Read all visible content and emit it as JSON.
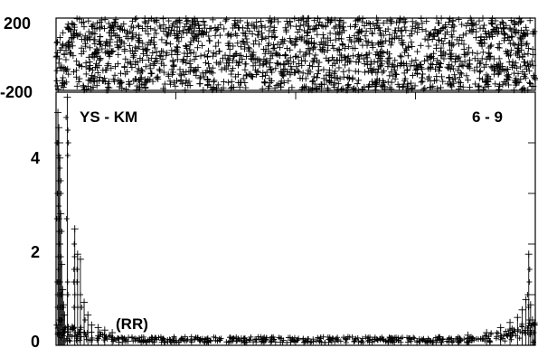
{
  "chart_data": [
    {
      "type": "scatter",
      "panel": "phase",
      "y_ticks": [
        "200",
        "-200"
      ],
      "ylim": [
        -200,
        200
      ],
      "xlim": [
        0,
        512
      ],
      "marker": "+",
      "density": "dense cloud filling the full range",
      "color": "#000000"
    },
    {
      "type": "line",
      "panel": "magnitude",
      "title_left": "YS - KM",
      "title_right": "6 - 9",
      "overlay_text": "(RR)",
      "y_ticks": [
        "4",
        "2",
        "0"
      ],
      "ylim": [
        0,
        5
      ],
      "xlim": [
        0,
        512
      ],
      "marker": "+",
      "color": "#000000",
      "peaks": [
        {
          "x": 2,
          "y": 4.6
        },
        {
          "x": 3,
          "y": 4.3
        },
        {
          "x": 4,
          "y": 3.7
        },
        {
          "x": 5,
          "y": 2.6
        },
        {
          "x": 6,
          "y": 1.6
        },
        {
          "x": 7,
          "y": 1.1
        },
        {
          "x": 8,
          "y": 0.8
        },
        {
          "x": 9,
          "y": 0.6
        },
        {
          "x": 12,
          "y": 4.9
        },
        {
          "x": 20,
          "y": 2.3
        },
        {
          "x": 23,
          "y": 1.8
        },
        {
          "x": 26,
          "y": 1.7
        },
        {
          "x": 30,
          "y": 0.85
        },
        {
          "x": 34,
          "y": 0.6
        },
        {
          "x": 38,
          "y": 0.4
        },
        {
          "x": 45,
          "y": 0.35
        },
        {
          "x": 52,
          "y": 0.3
        },
        {
          "x": 60,
          "y": 0.25
        },
        {
          "x": 440,
          "y": 0.2
        },
        {
          "x": 460,
          "y": 0.25
        },
        {
          "x": 475,
          "y": 0.35
        },
        {
          "x": 485,
          "y": 0.45
        },
        {
          "x": 493,
          "y": 0.55
        },
        {
          "x": 498,
          "y": 0.7
        },
        {
          "x": 502,
          "y": 0.9
        },
        {
          "x": 505,
          "y": 1.8
        },
        {
          "x": 507,
          "y": 0.8
        },
        {
          "x": 509,
          "y": 0.5
        },
        {
          "x": 511,
          "y": 0.4
        }
      ],
      "baseline": 0.05
    }
  ]
}
